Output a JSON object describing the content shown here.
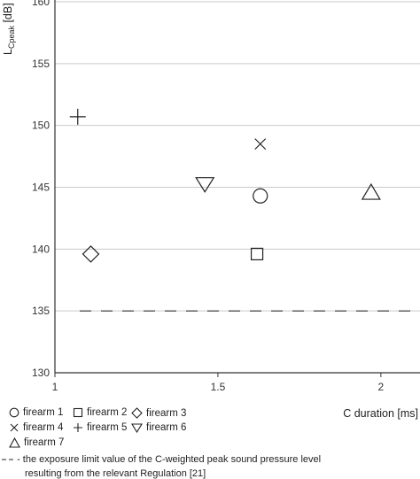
{
  "chart_data": {
    "type": "scatter",
    "xlabel": "C duration [ms]",
    "ylabel": "L",
    "ylabel_subscript": "Cpeak",
    "ylabel_unit": "[dB]",
    "xlim": [
      1,
      2.12
    ],
    "ylim": [
      130,
      160
    ],
    "x_ticks": [
      1,
      1.5,
      2
    ],
    "x_tick_labels": [
      "1",
      "1.5",
      "2"
    ],
    "y_ticks": [
      130,
      135,
      140,
      145,
      150,
      155,
      160
    ],
    "y_tick_labels": [
      "130",
      "135",
      "140",
      "145",
      "150",
      "155",
      "160"
    ],
    "grid": "horizontal",
    "series": [
      {
        "name": "firearm 1",
        "marker": "circle",
        "x": [
          1.63
        ],
        "y": [
          144.3
        ]
      },
      {
        "name": "firearm 2",
        "marker": "square",
        "x": [
          1.62
        ],
        "y": [
          139.6
        ]
      },
      {
        "name": "firearm 3",
        "marker": "diamond",
        "x": [
          1.11
        ],
        "y": [
          139.6
        ]
      },
      {
        "name": "firearm 4",
        "marker": "cross",
        "x": [
          1.63
        ],
        "y": [
          148.5
        ]
      },
      {
        "name": "firearm 5",
        "marker": "plus",
        "x": [
          1.07
        ],
        "y": [
          150.7
        ]
      },
      {
        "name": "firearm 6",
        "marker": "triangle-down",
        "x": [
          1.46
        ],
        "y": [
          145.2
        ]
      },
      {
        "name": "firearm 7",
        "marker": "triangle-up",
        "x": [
          1.97
        ],
        "y": [
          144.6
        ]
      }
    ],
    "reference_line": {
      "y": 135,
      "style": "dashed",
      "label": "the exposure limit value of the C-weighted peak sound pressure level resulting from the relevant Regulation [21]"
    }
  },
  "legend": {
    "note_line1": "- the exposure limit value of the C-weighted peak sound pressure level",
    "note_line2": "resulting from the relevant Regulation [21]"
  }
}
